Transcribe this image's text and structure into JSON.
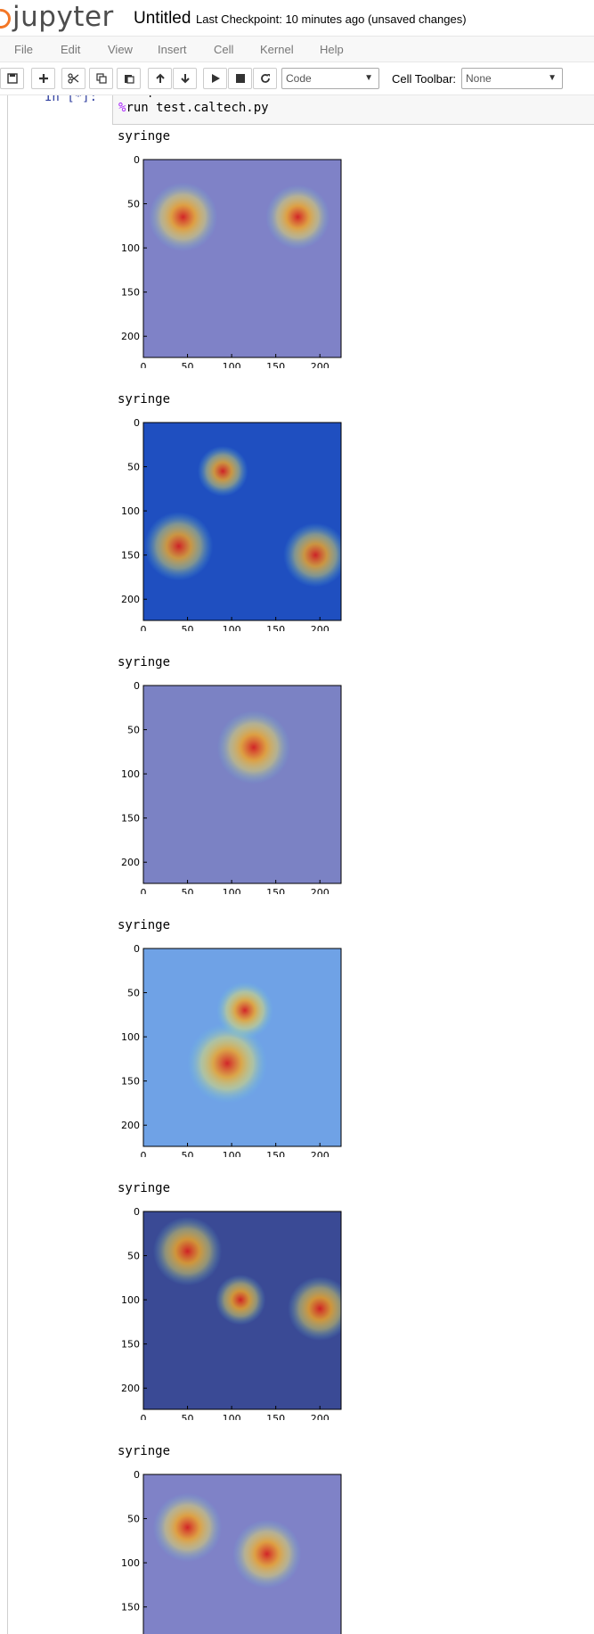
{
  "header": {
    "logo_text": "jupyter",
    "notebook_title": "Untitled",
    "checkpoint": "Last Checkpoint: 10 minutes ago (unsaved changes)"
  },
  "menubar": {
    "items": [
      "File",
      "Edit",
      "View",
      "Insert",
      "Cell",
      "Kernel",
      "Help"
    ]
  },
  "toolbar": {
    "cell_type": "Code",
    "cell_toolbar_label": "Cell Toolbar:",
    "cell_toolbar_value": "None",
    "icons": [
      "save-icon",
      "plus-icon",
      "scissors-icon",
      "copy-icon",
      "paste-icon",
      "arrow-up-icon",
      "arrow-down-icon",
      "play-icon",
      "stop-icon",
      "restart-icon"
    ]
  },
  "cell": {
    "prompt": "In [*]:",
    "code": [
      "%matplotlib inline",
      "%run test.caltech.py"
    ]
  },
  "outputs": [
    {
      "label": "syringe",
      "bg": "#7f82c7"
    },
    {
      "label": "syringe",
      "bg": "#1f4fc0"
    },
    {
      "label": "syringe",
      "bg": "#7b82c4"
    },
    {
      "label": "syringe",
      "bg": "#6fa2e6"
    },
    {
      "label": "syringe",
      "bg": "#3a4a95"
    },
    {
      "label": "syringe",
      "bg": "#7f82c7"
    }
  ],
  "chart_data": [
    {
      "type": "heatmap",
      "xlim": [
        0,
        224
      ],
      "ylim": [
        224,
        0
      ],
      "x_ticks": [
        "0",
        "50",
        "100",
        "150",
        "200"
      ],
      "y_ticks": [
        "0",
        "50",
        "100",
        "150",
        "200"
      ]
    },
    {
      "type": "heatmap",
      "xlim": [
        0,
        224
      ],
      "ylim": [
        224,
        0
      ],
      "x_ticks": [
        "0",
        "50",
        "100",
        "150",
        "200"
      ],
      "y_ticks": [
        "0",
        "50",
        "100",
        "150",
        "200"
      ]
    },
    {
      "type": "heatmap",
      "xlim": [
        0,
        224
      ],
      "ylim": [
        224,
        0
      ],
      "x_ticks": [
        "0",
        "50",
        "100",
        "150",
        "200"
      ],
      "y_ticks": [
        "0",
        "50",
        "100",
        "150",
        "200"
      ]
    },
    {
      "type": "heatmap",
      "xlim": [
        0,
        224
      ],
      "ylim": [
        224,
        0
      ],
      "x_ticks": [
        "0",
        "50",
        "100",
        "150",
        "200"
      ],
      "y_ticks": [
        "0",
        "50",
        "100",
        "150",
        "200"
      ]
    },
    {
      "type": "heatmap",
      "xlim": [
        0,
        224
      ],
      "ylim": [
        224,
        0
      ],
      "x_ticks": [
        "0",
        "50",
        "100",
        "150",
        "200"
      ],
      "y_ticks": [
        "0",
        "50",
        "100",
        "150",
        "200"
      ]
    },
    {
      "type": "heatmap",
      "xlim": [
        0,
        224
      ],
      "ylim": [
        224,
        0
      ],
      "x_ticks": [],
      "y_ticks": [
        "0",
        "50",
        "100",
        "150"
      ]
    }
  ]
}
